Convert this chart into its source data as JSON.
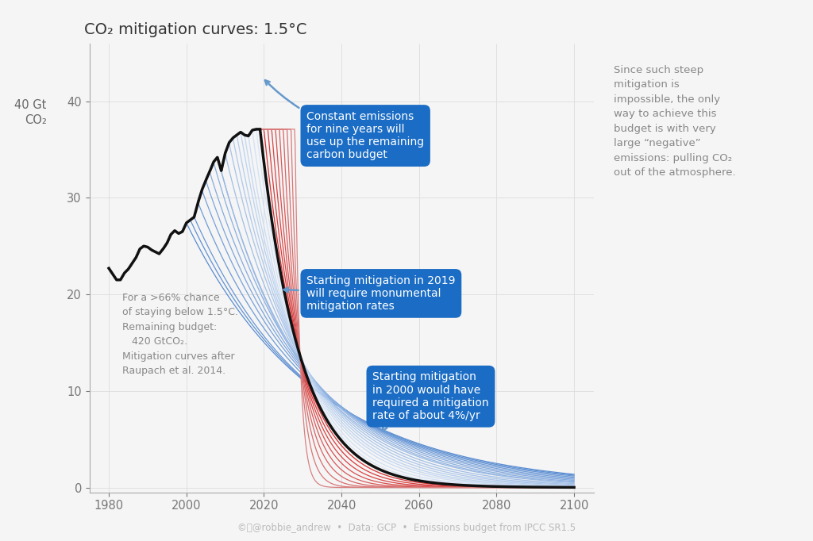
{
  "title": "CO₂ mitigation curves: 1.5°C",
  "xlim": [
    1975,
    2105
  ],
  "ylim": [
    -0.5,
    46
  ],
  "xticks": [
    1980,
    2000,
    2020,
    2040,
    2060,
    2080,
    2100
  ],
  "yticks": [
    0,
    10,
    20,
    30,
    40
  ],
  "bg_color": "#f5f5f5",
  "footer_text": "©ⓘ@robbie_andrew  •  Data: GCP  •  Emissions budget from IPCC SR1.5",
  "right_annotation": "Since such steep\nmitigation is\nimpossible, the only\nway to achieve this\nbudget is with very\nlarge “negative”\nemissions: pulling CO₂\nout of the atmosphere.",
  "left_annotation": "For a >66% chance\nof staying below 1.5°C.\nRemaining budget:\n   420 GtCO₂.\nMitigation curves after\nRaupach et al. 2014.",
  "annotation1_text": "Constant emissions\nfor nine years will\nuse up the remaining\ncarbon budget",
  "annotation2_text": "Starting mitigation in 2019\nwill require monumental\nmitigation rates",
  "annotation3_text": "Starting mitigation\nin 2000 would have\nrequired a mitigation\nrate of about 4%/yr",
  "mitigation_start_years_blue": [
    2000,
    2001,
    2002,
    2003,
    2004,
    2005,
    2006,
    2007,
    2008,
    2009,
    2010,
    2011,
    2012,
    2013,
    2014,
    2015,
    2016,
    2017,
    2018
  ],
  "mitigation_start_years_red": [
    2019,
    2020,
    2021,
    2022,
    2023,
    2024,
    2025,
    2026,
    2027,
    2028
  ],
  "peak_year": 2018,
  "peak_value": 37.1,
  "budget_remaining": 420,
  "box_color": "#1a6cc4",
  "box_text_color": "#ffffff",
  "hist_years": [
    1980,
    1981,
    1982,
    1983,
    1984,
    1985,
    1986,
    1987,
    1988,
    1989,
    1990,
    1991,
    1992,
    1993,
    1994,
    1995,
    1996,
    1997,
    1998,
    1999,
    2000,
    2001,
    2002,
    2003,
    2004,
    2005,
    2006,
    2007,
    2008,
    2009,
    2010,
    2011,
    2012,
    2013,
    2014,
    2015,
    2016,
    2017,
    2018,
    2019
  ],
  "hist_values": [
    22.7,
    22.1,
    21.5,
    21.5,
    22.2,
    22.6,
    23.2,
    23.8,
    24.7,
    25.0,
    24.9,
    24.6,
    24.4,
    24.2,
    24.7,
    25.3,
    26.2,
    26.6,
    26.3,
    26.5,
    27.4,
    27.7,
    28.0,
    29.5,
    30.8,
    31.8,
    32.7,
    33.7,
    34.2,
    32.8,
    34.6,
    35.7,
    36.2,
    36.5,
    36.8,
    36.5,
    36.4,
    37.0,
    37.1,
    37.1
  ]
}
